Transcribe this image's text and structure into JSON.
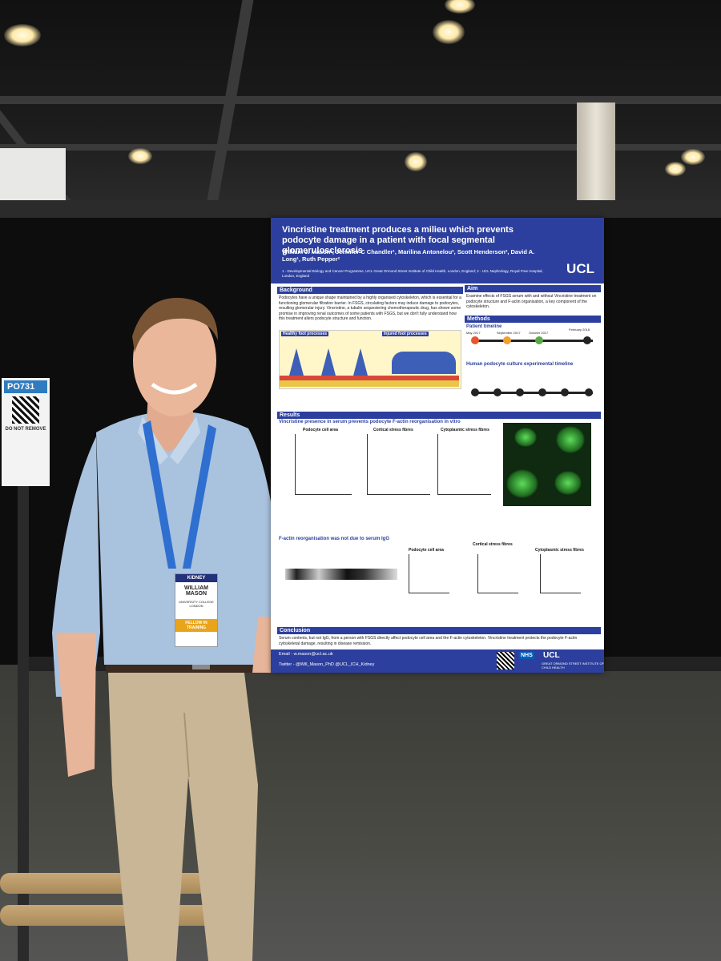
{
  "poster": {
    "title": "Vincristine treatment produces a milieu which prevents podocyte damage in a patient with focal segmental glomerulosclerosis",
    "authors": "William J. Mason¹, Jennifer C Chandler¹, Marilina Antonelou², Scott Henderson², David A. Long¹, Ruth Pepper²",
    "affiliation": "1 - Developmental Biology and Cancer Programme, UCL Great Ormond Street Institute of Child Health, London, England; 2 - UCL Nephrology, Royal Free Hospital, London, England",
    "logo": "UCL",
    "background_heading": "Background",
    "background_text": "Podocytes have a unique shape maintained by a highly organised cytoskeleton, which is essential for a functioning glomerular filtration barrier. In FSGS, circulating factors may induce damage to podocytes, resulting glomerular injury. Vincristine, a tubulin sequestering chemotherapeutic drug, has shown some promise in improving renal outcomes of some patients with FSGS, but we don't fully understand how this treatment alters podocyte structure and function.",
    "healthy_label": "Healthy foot processes",
    "injured_label": "Injured foot processes",
    "aim_heading": "Aim",
    "aim_text": "Examine effects of FSGS serum with and without Vincristine treatment on podocyte structure and F-actin organisation, a key component of the cytoskeleton.",
    "methods_heading": "Methods",
    "patient_timeline": "Patient timeline",
    "timeline_dates": [
      "May 2017",
      "September 2017",
      "October 2017",
      "February 2018"
    ],
    "culture_timeline": "Human podocyte culture experimental timeline",
    "results_heading": "Results",
    "results_sub1": "Vincristine presence in serum prevents podocyte F-actin reorganisation in vitro",
    "chart_titles": [
      "Podocyte cell area",
      "Cortical stress fibres",
      "Cytoplasmic stress fibres"
    ],
    "results_sub2": "F-actin reorganisation was not due to serum IgG",
    "chart_titles2": [
      "Podocyte cell area",
      "Cortical stress fibres",
      "Cytoplasmic stress fibres"
    ],
    "conclusion_heading": "Conclusion",
    "conclusion_text": "Serum contents, but not IgG, from a person with FSGS directly affect podocyte cell area and the F-actin cytoskeleton. Vincristine treatment protects the podocyte F-actin cytoskeletal damage, resulting in disease remission.",
    "email": "Email - w.mason@ucl.ac.uk",
    "twitter": "Twitter - @Will_Mason_PhD   @UCL_ICH_Kidney",
    "footer_logos": [
      "NHS",
      "UCL",
      "GREAT ORMOND STREET INSTITUTE OF CHILD HEALTH"
    ]
  },
  "tag": {
    "code": "PO731",
    "note": "DO NOT REMOVE"
  },
  "badge": {
    "header": "KIDNEY",
    "name": "WILLIAM MASON",
    "org": "UNIVERSITY COLLEGE LONDON",
    "footer": "FELLOW IN TRAINING"
  }
}
